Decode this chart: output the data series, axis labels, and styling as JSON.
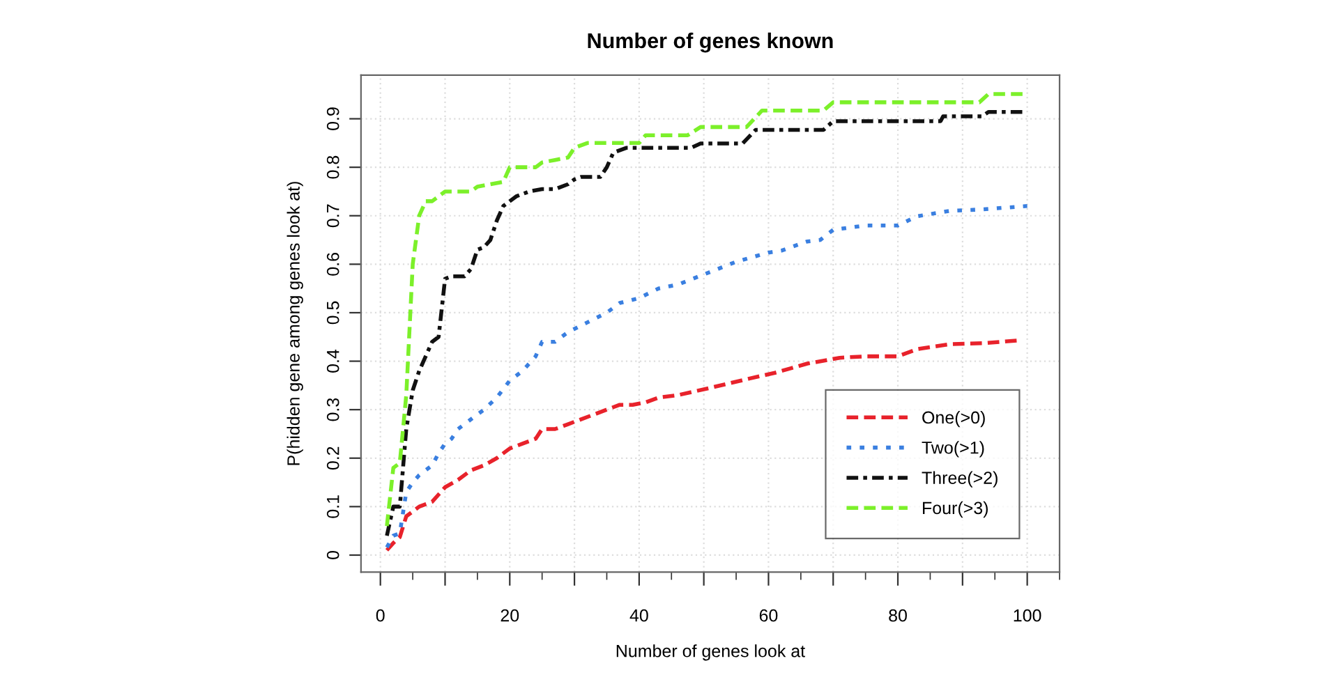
{
  "chart_data": {
    "type": "line",
    "title": "Number of genes known",
    "xlabel": "Number of genes look at",
    "ylabel": "P(hidden gene among genes look at)",
    "xlim": [
      -3,
      105
    ],
    "ylim": [
      -0.035,
      0.99
    ],
    "xticks": [
      0,
      {
        "value": 10,
        "label": null
      },
      20,
      {
        "value": 30,
        "label": null
      },
      40,
      {
        "value": 50,
        "label": null
      },
      60,
      {
        "value": 70,
        "label": null
      },
      80,
      {
        "value": 90,
        "label": null
      },
      100
    ],
    "yticks": [
      0,
      0.1,
      0.2,
      0.3,
      0.4,
      0.5,
      0.6,
      0.7,
      0.8,
      0.9
    ],
    "grid": true,
    "legend": "bottom right",
    "series": [
      {
        "name": "One(>0)",
        "color": "#e8222b",
        "line_style": "dashed",
        "x": [
          1,
          2,
          3,
          4,
          5,
          6,
          8,
          9,
          10,
          12,
          14,
          16,
          18,
          20,
          22,
          24,
          25,
          27,
          29,
          31,
          33,
          35,
          37,
          39,
          41,
          43,
          46,
          51,
          57,
          61,
          66,
          71,
          75,
          80,
          83,
          88,
          93,
          99
        ],
        "values": [
          0.01,
          0.025,
          0.037,
          0.08,
          0.09,
          0.1,
          0.11,
          0.125,
          0.14,
          0.155,
          0.175,
          0.185,
          0.2,
          0.22,
          0.23,
          0.24,
          0.26,
          0.26,
          0.27,
          0.28,
          0.29,
          0.3,
          0.31,
          0.31,
          0.315,
          0.325,
          0.33,
          0.345,
          0.364,
          0.376,
          0.395,
          0.407,
          0.41,
          0.41,
          0.425,
          0.435,
          0.437,
          0.443
        ]
      },
      {
        "name": "Two(>1)",
        "color": "#3a7fe0",
        "line_style": "dotted",
        "x": [
          1,
          2,
          3,
          4,
          5,
          6,
          7,
          8,
          9,
          10,
          11,
          12,
          14,
          16,
          18,
          20,
          22,
          24,
          25,
          27,
          29,
          32,
          35,
          37,
          40,
          43,
          46,
          55,
          60,
          62,
          66,
          68,
          70,
          75,
          80,
          83,
          88,
          93,
          100
        ],
        "values": [
          0.016,
          0.04,
          0.045,
          0.13,
          0.15,
          0.165,
          0.175,
          0.185,
          0.21,
          0.23,
          0.24,
          0.26,
          0.28,
          0.3,
          0.325,
          0.36,
          0.38,
          0.41,
          0.44,
          0.44,
          0.46,
          0.48,
          0.5,
          0.52,
          0.53,
          0.55,
          0.558,
          0.605,
          0.624,
          0.628,
          0.647,
          0.65,
          0.671,
          0.68,
          0.68,
          0.699,
          0.71,
          0.713,
          0.72
        ]
      },
      {
        "name": "Three(>2)",
        "color": "#111111",
        "line_style": "dashdot",
        "x": [
          1,
          2,
          3,
          4,
          5,
          6,
          7,
          8,
          9,
          10,
          11,
          13,
          14,
          15,
          16,
          17,
          18,
          19,
          20,
          21,
          23,
          25,
          27,
          29,
          30,
          31,
          34,
          35,
          36,
          38,
          48,
          49.5,
          56,
          58,
          68.5,
          70,
          86.6,
          87,
          93,
          94,
          100
        ],
        "values": [
          0.04,
          0.1,
          0.1,
          0.26,
          0.34,
          0.38,
          0.41,
          0.44,
          0.45,
          0.57,
          0.575,
          0.575,
          0.59,
          0.63,
          0.635,
          0.65,
          0.69,
          0.72,
          0.73,
          0.74,
          0.75,
          0.755,
          0.755,
          0.765,
          0.775,
          0.78,
          0.78,
          0.8,
          0.83,
          0.84,
          0.84,
          0.849,
          0.849,
          0.877,
          0.877,
          0.895,
          0.895,
          0.905,
          0.905,
          0.914,
          0.914
        ]
      },
      {
        "name": "Four(>3)",
        "color": "#7cf02a",
        "line_style": "dashed",
        "x": [
          1,
          2,
          3,
          4,
          5,
          6,
          7,
          8,
          9,
          10,
          14,
          15,
          19,
          20,
          24,
          25,
          27,
          29,
          30,
          32,
          40,
          41,
          47.5,
          49.5,
          56.6,
          59,
          68.5,
          70,
          92.6,
          94,
          100
        ],
        "values": [
          0.06,
          0.18,
          0.19,
          0.33,
          0.6,
          0.7,
          0.73,
          0.73,
          0.74,
          0.75,
          0.75,
          0.76,
          0.77,
          0.8,
          0.8,
          0.81,
          0.815,
          0.82,
          0.84,
          0.85,
          0.85,
          0.866,
          0.866,
          0.883,
          0.883,
          0.917,
          0.917,
          0.934,
          0.934,
          0.951,
          0.951
        ]
      }
    ]
  }
}
